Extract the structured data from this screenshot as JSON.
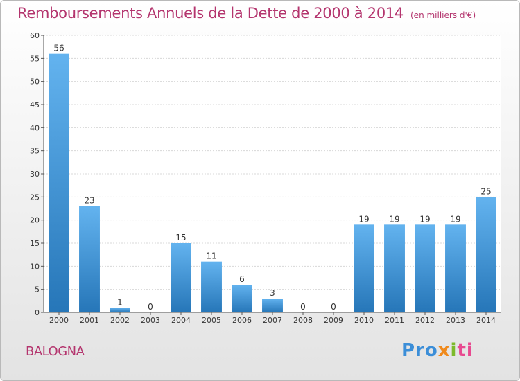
{
  "header": {
    "title": "Remboursements Annuels de la Dette de 2000 à 2014",
    "unit": "(en milliers d'€)"
  },
  "footer": {
    "commune": "BALOGNA",
    "logo_parts": [
      "Pro",
      "x",
      "i",
      "ti"
    ]
  },
  "colors": {
    "title": "#b4356e",
    "bar_top": "#63b3ef",
    "bar_bottom": "#2676b8",
    "grid": "#d8d8d8"
  },
  "chart_data": {
    "type": "bar",
    "title": "Remboursements Annuels de la Dette de 2000 à 2014",
    "subtitle": "(en milliers d'€)",
    "categories": [
      "2000",
      "2001",
      "2002",
      "2003",
      "2004",
      "2005",
      "2006",
      "2007",
      "2008",
      "2009",
      "2010",
      "2011",
      "2012",
      "2013",
      "2014"
    ],
    "values": [
      56,
      23,
      1,
      0,
      15,
      11,
      6,
      3,
      0,
      0,
      19,
      19,
      19,
      19,
      25
    ],
    "ylim": [
      0,
      60
    ],
    "yticks": [
      0,
      5,
      10,
      15,
      20,
      25,
      30,
      35,
      40,
      45,
      50,
      55,
      60
    ],
    "grid": true,
    "data_labels": true
  }
}
